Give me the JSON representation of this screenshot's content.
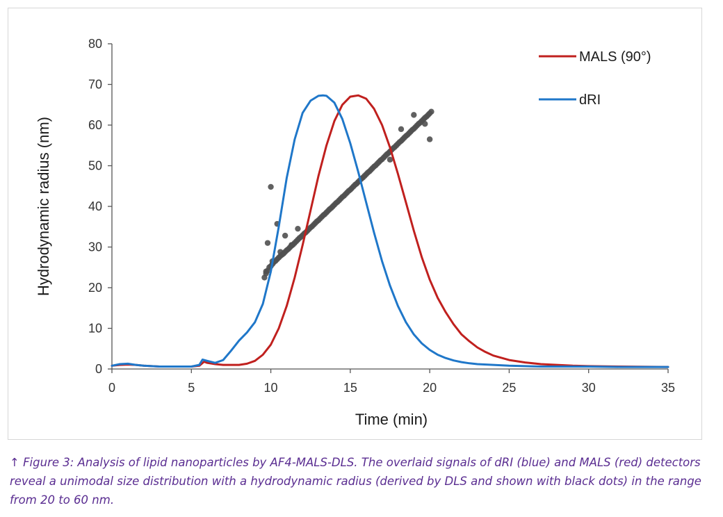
{
  "chart_data": {
    "type": "line",
    "title": "",
    "xlabel": "Time (min)",
    "ylabel": "Hydrodynamic radius (nm)",
    "xlim": [
      0,
      35
    ],
    "ylim": [
      0,
      80
    ],
    "xticks": [
      0,
      5,
      10,
      15,
      20,
      25,
      30,
      35
    ],
    "yticks": [
      0,
      10,
      20,
      30,
      40,
      50,
      60,
      70,
      80
    ],
    "grid": false,
    "legend_position": "top-right",
    "series": [
      {
        "name": "MALS (90°)",
        "kind": "line",
        "color": "#c0201e",
        "x": [
          0,
          0.5,
          1,
          1.5,
          2,
          3,
          4,
          5,
          5.5,
          5.8,
          6,
          6.5,
          7,
          7.5,
          8,
          8.5,
          9,
          9.5,
          10,
          10.5,
          11,
          11.5,
          12,
          12.5,
          13,
          13.5,
          14,
          14.5,
          15,
          15.5,
          16,
          16.5,
          17,
          17.5,
          18,
          18.5,
          19,
          19.5,
          20,
          20.5,
          21,
          21.5,
          22,
          22.5,
          23,
          23.5,
          24,
          25,
          26,
          27,
          28,
          29,
          30,
          32,
          35
        ],
        "values": [
          0.8,
          1.0,
          1.1,
          1.0,
          0.8,
          0.6,
          0.6,
          0.6,
          0.8,
          1.8,
          1.5,
          1.2,
          1.0,
          1.0,
          1.0,
          1.3,
          2.0,
          3.5,
          6.0,
          10.0,
          15.5,
          22.5,
          30.5,
          39.0,
          47.5,
          55.0,
          61.0,
          65.0,
          67.0,
          67.3,
          66.5,
          64.0,
          60.0,
          54.5,
          48.0,
          41.0,
          34.0,
          27.5,
          22.0,
          17.5,
          14.0,
          11.0,
          8.5,
          6.8,
          5.3,
          4.2,
          3.3,
          2.2,
          1.6,
          1.2,
          1.0,
          0.8,
          0.7,
          0.6,
          0.5
        ]
      },
      {
        "name": "dRI",
        "kind": "line",
        "color": "#1f77c9",
        "x": [
          0,
          0.5,
          1,
          1.5,
          2,
          3,
          4,
          5,
          5.5,
          5.7,
          6,
          6.5,
          7,
          7.5,
          8,
          8.5,
          9,
          9.5,
          10,
          10.5,
          11,
          11.5,
          12,
          12.5,
          13,
          13.3,
          13.5,
          14,
          14.5,
          15,
          15.5,
          16,
          16.5,
          17,
          17.5,
          18,
          18.5,
          19,
          19.5,
          20,
          20.5,
          21,
          21.5,
          22,
          22.5,
          23,
          24,
          25,
          26,
          27,
          28,
          30,
          32,
          35
        ],
        "values": [
          0.8,
          1.2,
          1.3,
          1.0,
          0.8,
          0.6,
          0.6,
          0.6,
          1.0,
          2.3,
          2.0,
          1.5,
          2.2,
          4.5,
          7.0,
          9.0,
          11.5,
          16.0,
          24.0,
          35.0,
          47.0,
          56.5,
          63.0,
          66.0,
          67.2,
          67.3,
          67.2,
          65.5,
          61.5,
          55.5,
          48.5,
          41.0,
          33.5,
          26.5,
          20.5,
          15.5,
          11.5,
          8.5,
          6.3,
          4.7,
          3.5,
          2.7,
          2.1,
          1.7,
          1.4,
          1.2,
          1.0,
          0.8,
          0.7,
          0.6,
          0.6,
          0.6,
          0.5,
          0.5
        ]
      },
      {
        "name": "",
        "kind": "scatter",
        "color": "#505050",
        "x": [
          9.6,
          9.7,
          9.8,
          9.9,
          10.0,
          10.1,
          10.2,
          10.3,
          10.4,
          10.5,
          10.6,
          10.7,
          10.8,
          10.9,
          11.0,
          11.1,
          11.2,
          11.3,
          11.4,
          11.5,
          11.6,
          11.7,
          11.8,
          11.9,
          12.0,
          12.1,
          12.2,
          12.3,
          12.4,
          12.5,
          12.6,
          12.7,
          12.8,
          12.9,
          13.0,
          13.1,
          13.2,
          13.3,
          13.4,
          13.5,
          13.6,
          13.7,
          13.8,
          13.9,
          14.0,
          14.1,
          14.2,
          14.3,
          14.4,
          14.5,
          14.6,
          14.7,
          14.8,
          14.9,
          15.0,
          15.1,
          15.2,
          15.3,
          15.4,
          15.5,
          15.6,
          15.7,
          15.8,
          15.9,
          16.0,
          16.1,
          16.2,
          16.3,
          16.4,
          16.5,
          16.6,
          16.7,
          16.8,
          16.9,
          17.0,
          17.1,
          17.2,
          17.3,
          17.4,
          17.5,
          17.6,
          17.7,
          17.8,
          17.9,
          18.0,
          18.1,
          18.2,
          18.3,
          18.4,
          18.5,
          18.6,
          18.7,
          18.8,
          18.9,
          19.0,
          19.1,
          19.2,
          19.3,
          19.4,
          19.5,
          19.6,
          19.7,
          19.8,
          19.9,
          20.0,
          20.1,
          10.0,
          10.4,
          9.8,
          10.9,
          11.3,
          10.6,
          19.0,
          18.2,
          9.7,
          10.1,
          11.7,
          20.0,
          19.7,
          17.5
        ],
        "values": [
          22.5,
          23.5,
          24.2,
          25.0,
          25.3,
          25.8,
          26.3,
          26.6,
          27.0,
          27.4,
          27.8,
          28.1,
          28.4,
          28.8,
          29.2,
          29.5,
          29.9,
          30.3,
          30.6,
          31.0,
          31.4,
          31.8,
          32.2,
          32.5,
          32.9,
          33.3,
          33.6,
          34.0,
          34.4,
          34.8,
          35.1,
          35.5,
          35.9,
          36.3,
          36.6,
          37.0,
          37.4,
          37.8,
          38.1,
          38.5,
          38.9,
          39.3,
          39.6,
          40.0,
          40.4,
          40.8,
          41.1,
          41.5,
          41.9,
          42.3,
          42.6,
          43.0,
          43.4,
          43.8,
          44.1,
          44.5,
          44.9,
          45.3,
          45.6,
          46.0,
          46.4,
          46.8,
          47.1,
          47.5,
          47.9,
          48.3,
          48.6,
          49.0,
          49.4,
          49.8,
          50.1,
          50.5,
          50.9,
          51.3,
          51.6,
          52.0,
          52.4,
          52.8,
          53.1,
          53.5,
          53.9,
          54.3,
          54.6,
          55.0,
          55.4,
          55.8,
          56.1,
          56.5,
          56.9,
          57.3,
          57.6,
          58.0,
          58.4,
          58.8,
          59.1,
          59.5,
          59.9,
          60.3,
          60.6,
          61.0,
          61.4,
          61.8,
          62.1,
          62.5,
          62.9,
          63.3,
          44.8,
          35.7,
          31.0,
          32.8,
          30.5,
          28.8,
          62.5,
          59.0,
          24.0,
          26.5,
          34.5,
          56.5,
          60.3,
          51.5
        ]
      }
    ]
  },
  "caption": "↑ Figure 3: Analysis of lipid nanoparticles by AF4-MALS-DLS. The overlaid signals of dRI (blue) and MALS (red) detectors reveal a unimodal size distribution with a hydrodynamic radius (derived by DLS and shown with black dots) in the range from 20 to 60 nm."
}
